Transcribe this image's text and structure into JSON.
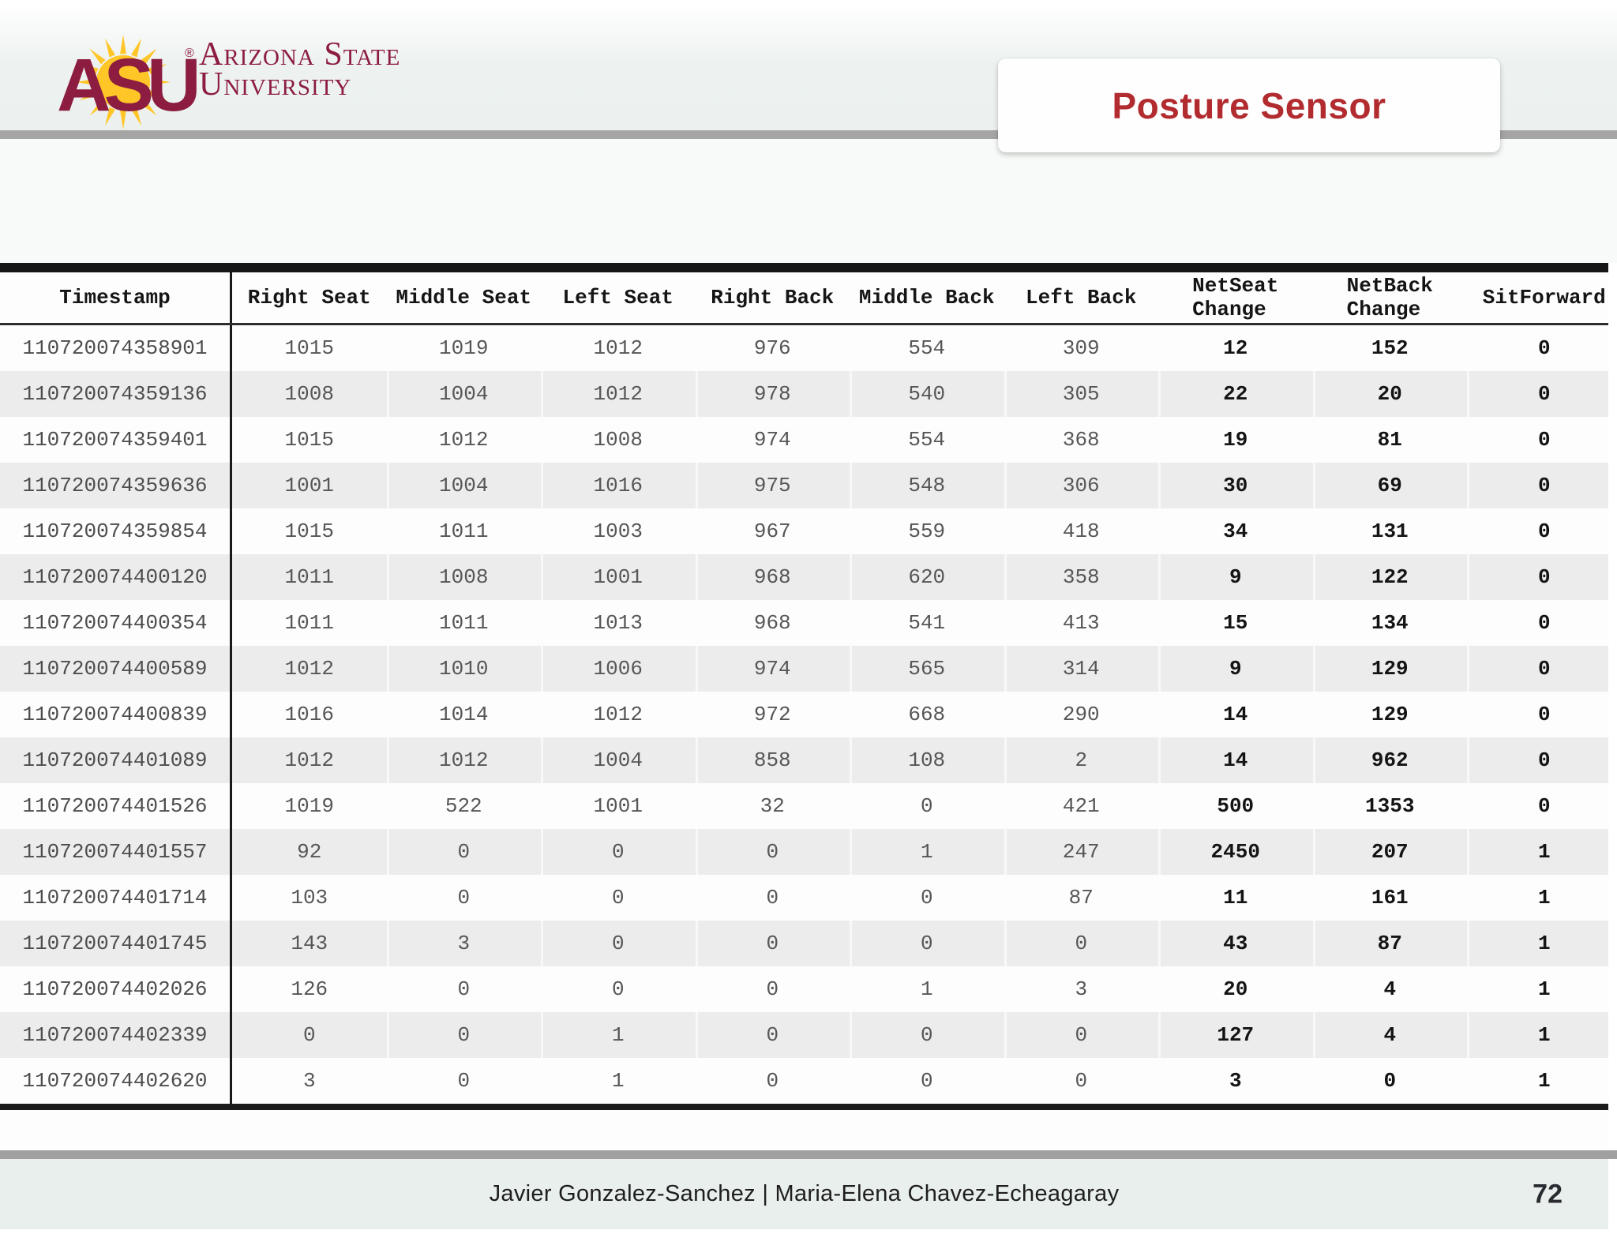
{
  "brand": {
    "asu": "ASU",
    "registered": "®",
    "line1": "Arizona State",
    "line2": "University"
  },
  "header": {
    "title": "Posture Sensor"
  },
  "colors": {
    "asu_maroon": "#8C1D40",
    "asu_gold": "#FFC627",
    "title_red": "#B12B2F",
    "row_stripe": "#ECECEC",
    "bar_gray": "#A5A5A5"
  },
  "table": {
    "columns": [
      "Timestamp",
      "Right Seat",
      "Middle Seat",
      "Left Seat",
      "Right Back",
      "Middle Back",
      "Left Back",
      "NetSeat\nChange",
      "NetBack\nChange",
      "SitForward"
    ],
    "rows": [
      [
        "110720074358901",
        "1015",
        "1019",
        "1012",
        "976",
        "554",
        "309",
        "12",
        "152",
        "0"
      ],
      [
        "110720074359136",
        "1008",
        "1004",
        "1012",
        "978",
        "540",
        "305",
        "22",
        "20",
        "0"
      ],
      [
        "110720074359401",
        "1015",
        "1012",
        "1008",
        "974",
        "554",
        "368",
        "19",
        "81",
        "0"
      ],
      [
        "110720074359636",
        "1001",
        "1004",
        "1016",
        "975",
        "548",
        "306",
        "30",
        "69",
        "0"
      ],
      [
        "110720074359854",
        "1015",
        "1011",
        "1003",
        "967",
        "559",
        "418",
        "34",
        "131",
        "0"
      ],
      [
        "110720074400120",
        "1011",
        "1008",
        "1001",
        "968",
        "620",
        "358",
        "9",
        "122",
        "0"
      ],
      [
        "110720074400354",
        "1011",
        "1011",
        "1013",
        "968",
        "541",
        "413",
        "15",
        "134",
        "0"
      ],
      [
        "110720074400589",
        "1012",
        "1010",
        "1006",
        "974",
        "565",
        "314",
        "9",
        "129",
        "0"
      ],
      [
        "110720074400839",
        "1016",
        "1014",
        "1012",
        "972",
        "668",
        "290",
        "14",
        "129",
        "0"
      ],
      [
        "110720074401089",
        "1012",
        "1012",
        "1004",
        "858",
        "108",
        "2",
        "14",
        "962",
        "0"
      ],
      [
        "110720074401526",
        "1019",
        "522",
        "1001",
        "32",
        "0",
        "421",
        "500",
        "1353",
        "0"
      ],
      [
        "110720074401557",
        "92",
        "0",
        "0",
        "0",
        "1",
        "247",
        "2450",
        "207",
        "1"
      ],
      [
        "110720074401714",
        "103",
        "0",
        "0",
        "0",
        "0",
        "87",
        "11",
        "161",
        "1"
      ],
      [
        "110720074401745",
        "143",
        "3",
        "0",
        "0",
        "0",
        "0",
        "43",
        "87",
        "1"
      ],
      [
        "110720074402026",
        "126",
        "0",
        "0",
        "0",
        "1",
        "3",
        "20",
        "4",
        "1"
      ],
      [
        "110720074402339",
        "0",
        "0",
        "1",
        "0",
        "0",
        "0",
        "127",
        "4",
        "1"
      ],
      [
        "110720074402620",
        "3",
        "0",
        "1",
        "0",
        "0",
        "0",
        "3",
        "0",
        "1"
      ]
    ]
  },
  "footer": {
    "authors": "Javier Gonzalez-Sanchez  |  Maria-Elena Chavez-Echeagaray",
    "page": "72"
  }
}
